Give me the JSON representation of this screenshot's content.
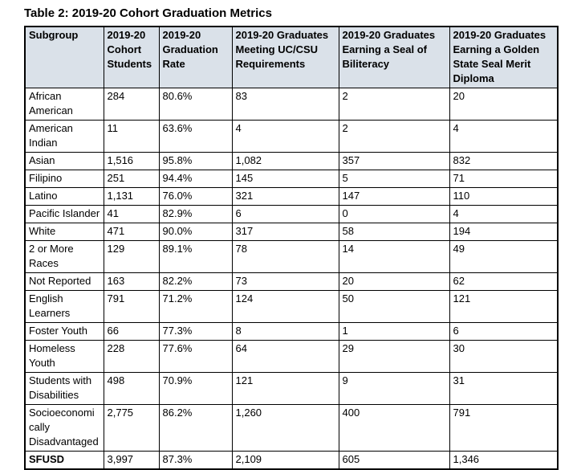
{
  "title": "Table 2: 2019-20 Cohort Graduation Metrics",
  "colors": {
    "header_bg": "#dae1e9",
    "border": "#000000",
    "text": "#000000"
  },
  "table": {
    "columns": [
      "Subgroup",
      "2019-20 Cohort Students",
      "2019-20 Graduation Rate",
      "2019-20 Graduates Meeting UC/CSU Requirements",
      "2019-20 Graduates Earning a Seal of Biliteracy",
      "2019-20 Graduates Earning a Golden State Seal Merit Diploma"
    ],
    "rows": [
      [
        "African American",
        "284",
        "80.6%",
        "83",
        "2",
        "20"
      ],
      [
        "American Indian",
        "11",
        "63.6%",
        "4",
        "2",
        "4"
      ],
      [
        "Asian",
        "1,516",
        "95.8%",
        "1,082",
        "357",
        "832"
      ],
      [
        "Filipino",
        "251",
        "94.4%",
        "145",
        "5",
        "71"
      ],
      [
        "Latino",
        "1,131",
        "76.0%",
        "321",
        "147",
        "110"
      ],
      [
        "Pacific Islander",
        "41",
        "82.9%",
        "6",
        "0",
        "4"
      ],
      [
        "White",
        "471",
        "90.0%",
        "317",
        "58",
        "194"
      ],
      [
        "2 or More Races",
        "129",
        "89.1%",
        "78",
        "14",
        "49"
      ],
      [
        "Not Reported",
        "163",
        "82.2%",
        "73",
        "20",
        "62"
      ],
      [
        "English Learners",
        "791",
        "71.2%",
        "124",
        "50",
        "121"
      ],
      [
        "Foster Youth",
        "66",
        "77.3%",
        "8",
        "1",
        "6"
      ],
      [
        "Homeless Youth",
        "228",
        "77.6%",
        "64",
        "29",
        "30"
      ],
      [
        "Students with Disabilities",
        "498",
        "70.9%",
        "121",
        "9",
        "31"
      ],
      [
        "Socioeconomi​cally Disadvantaged",
        "2,775",
        "86.2%",
        "1,260",
        "400",
        "791"
      ],
      [
        "SFUSD",
        "3,997",
        "87.3%",
        "2,109",
        "605",
        "1,346"
      ]
    ],
    "total_row_label": "SFUSD"
  }
}
